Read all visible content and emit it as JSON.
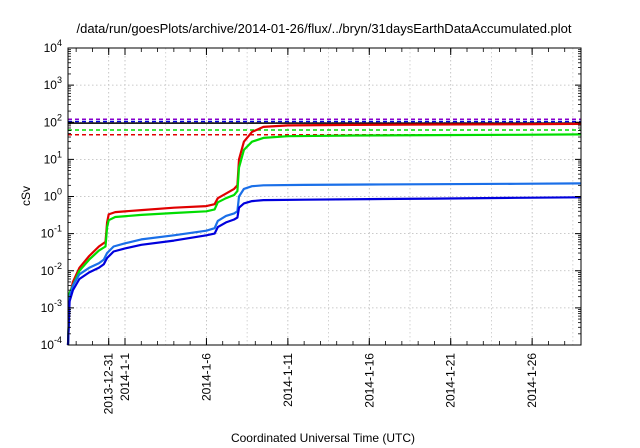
{
  "chart_data": {
    "type": "line",
    "title": "/data/run/goesPlots/archive/2014-01-26/flux/../bryn/31daysEarthDataAccumulated.plot",
    "xlabel": "Coordinated Universal Time (UTC)",
    "ylabel": "cSv",
    "yscale": "log",
    "ylim": [
      0.0001,
      10000
    ],
    "xlim": [
      -2.5,
      29
    ],
    "x_epoch_note": "",
    "x_ticks": [
      {
        "x": 0,
        "label": "2013-12-31"
      },
      {
        "x": 1,
        "label": "2014-1-1"
      },
      {
        "x": 6,
        "label": "2014-1-6"
      },
      {
        "x": 11,
        "label": "2014-1-11"
      },
      {
        "x": 16,
        "label": "2014-1-16"
      },
      {
        "x": 21,
        "label": "2014-1-21"
      },
      {
        "x": 26,
        "label": "2014-1-26"
      }
    ],
    "y_ticks": [
      {
        "exp": -4,
        "base": "10",
        "sup": "-4"
      },
      {
        "exp": -3,
        "base": "10",
        "sup": "-3"
      },
      {
        "exp": -2,
        "base": "10",
        "sup": "-2"
      },
      {
        "exp": -1,
        "base": "10",
        "sup": "-1"
      },
      {
        "exp": 0,
        "base": "10",
        "sup": "0"
      },
      {
        "exp": 1,
        "base": "10",
        "sup": "1"
      },
      {
        "exp": 2,
        "base": "10",
        "sup": "2"
      },
      {
        "exp": 3,
        "base": "10",
        "sup": "3"
      },
      {
        "exp": 4,
        "base": "10",
        "sup": "4"
      }
    ],
    "grid": true,
    "series": [
      {
        "color": "#e00000",
        "points": [
          [
            -2.5,
            0.0001
          ],
          [
            -2.4,
            0.002
          ],
          [
            -2.2,
            0.005
          ],
          [
            -1.8,
            0.012
          ],
          [
            -1.2,
            0.025
          ],
          [
            -0.6,
            0.045
          ],
          [
            -0.2,
            0.06
          ],
          [
            -0.1,
            0.2
          ],
          [
            0.0,
            0.33
          ],
          [
            0.4,
            0.38
          ],
          [
            2,
            0.43
          ],
          [
            4,
            0.5
          ],
          [
            6,
            0.55
          ],
          [
            6.5,
            0.62
          ],
          [
            6.7,
            0.9
          ],
          [
            7.2,
            1.2
          ],
          [
            7.7,
            1.6
          ],
          [
            7.9,
            2.0
          ],
          [
            8.0,
            10
          ],
          [
            8.3,
            30
          ],
          [
            8.8,
            55
          ],
          [
            9.5,
            75
          ],
          [
            11,
            82
          ],
          [
            15,
            85
          ],
          [
            20,
            87
          ],
          [
            25,
            88
          ],
          [
            29,
            90
          ]
        ]
      },
      {
        "color": "#00dd00",
        "points": [
          [
            -2.5,
            0.0001
          ],
          [
            -2.4,
            0.0025
          ],
          [
            -2.2,
            0.004
          ],
          [
            -1.8,
            0.01
          ],
          [
            -1.2,
            0.02
          ],
          [
            -0.6,
            0.035
          ],
          [
            -0.2,
            0.045
          ],
          [
            -0.1,
            0.15
          ],
          [
            0.0,
            0.23
          ],
          [
            0.4,
            0.28
          ],
          [
            2,
            0.32
          ],
          [
            4,
            0.36
          ],
          [
            6,
            0.4
          ],
          [
            6.5,
            0.45
          ],
          [
            6.7,
            0.7
          ],
          [
            7.2,
            0.9
          ],
          [
            7.7,
            1.1
          ],
          [
            7.9,
            1.4
          ],
          [
            8.0,
            6
          ],
          [
            8.3,
            18
          ],
          [
            8.8,
            30
          ],
          [
            9.5,
            38
          ],
          [
            11,
            42
          ],
          [
            15,
            44
          ],
          [
            20,
            45
          ],
          [
            25,
            46
          ],
          [
            29,
            47
          ]
        ]
      },
      {
        "color": "#1a6fe8",
        "points": [
          [
            -2.5,
            0.0001
          ],
          [
            -2.4,
            0.002
          ],
          [
            -2.2,
            0.004
          ],
          [
            -1.8,
            0.008
          ],
          [
            -1.2,
            0.012
          ],
          [
            -0.6,
            0.016
          ],
          [
            -0.3,
            0.02
          ],
          [
            -0.1,
            0.03
          ],
          [
            0.3,
            0.045
          ],
          [
            1,
            0.055
          ],
          [
            2,
            0.07
          ],
          [
            4,
            0.09
          ],
          [
            6,
            0.12
          ],
          [
            6.5,
            0.14
          ],
          [
            6.7,
            0.22
          ],
          [
            7.2,
            0.3
          ],
          [
            7.7,
            0.35
          ],
          [
            7.9,
            0.4
          ],
          [
            8.0,
            1.0
          ],
          [
            8.3,
            1.6
          ],
          [
            8.8,
            1.9
          ],
          [
            9.5,
            2.0
          ],
          [
            12,
            2.05
          ],
          [
            16,
            2.1
          ],
          [
            20,
            2.15
          ],
          [
            25,
            2.2
          ],
          [
            29,
            2.25
          ]
        ]
      },
      {
        "color": "#0000dd",
        "points": [
          [
            -2.5,
            0.0001
          ],
          [
            -2.4,
            0.0015
          ],
          [
            -2.2,
            0.003
          ],
          [
            -1.8,
            0.006
          ],
          [
            -1.2,
            0.009
          ],
          [
            -0.6,
            0.012
          ],
          [
            -0.3,
            0.015
          ],
          [
            -0.1,
            0.022
          ],
          [
            0.3,
            0.033
          ],
          [
            1,
            0.04
          ],
          [
            2,
            0.05
          ],
          [
            4,
            0.065
          ],
          [
            6,
            0.09
          ],
          [
            6.5,
            0.1
          ],
          [
            6.7,
            0.15
          ],
          [
            7.2,
            0.2
          ],
          [
            7.7,
            0.24
          ],
          [
            7.9,
            0.27
          ],
          [
            8.0,
            0.5
          ],
          [
            8.3,
            0.65
          ],
          [
            8.8,
            0.75
          ],
          [
            9.5,
            0.8
          ],
          [
            12,
            0.82
          ],
          [
            16,
            0.85
          ],
          [
            20,
            0.88
          ],
          [
            25,
            0.92
          ],
          [
            29,
            0.95
          ]
        ]
      }
    ],
    "thresholds": [
      {
        "value": 120,
        "color": "#8800cc"
      },
      {
        "value": 105,
        "color": "#0000dd"
      },
      {
        "value": 95,
        "color": "#000000",
        "solid": true
      },
      {
        "value": 62,
        "color": "#00dd00"
      },
      {
        "value": 46,
        "color": "#e00000"
      }
    ]
  }
}
